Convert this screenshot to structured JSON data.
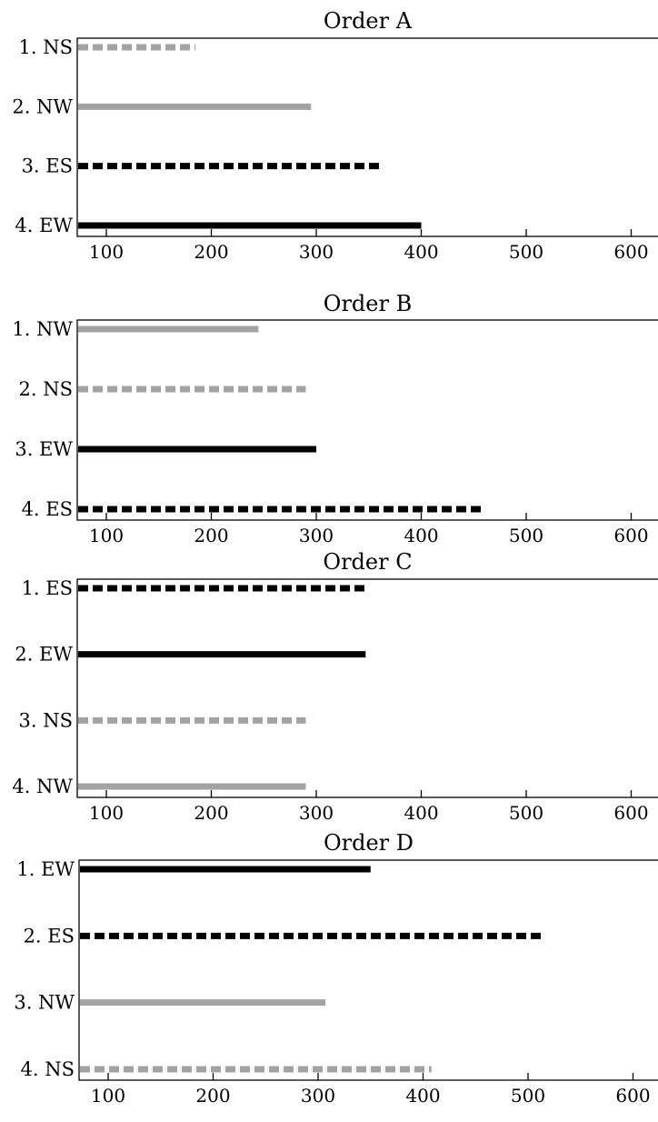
{
  "colors": {
    "black": "#000000",
    "gray": "#a3a3a3"
  },
  "chart_data": [
    {
      "type": "bar",
      "title": "Order A",
      "xlim": [
        70,
        630
      ],
      "xticks": [
        100,
        200,
        300,
        400,
        500,
        600
      ],
      "categories": [
        "1. NS",
        "2. NW",
        "3. ES",
        "4. EW"
      ],
      "values": [
        185,
        295,
        363,
        400
      ],
      "styles": [
        "gray-dashed",
        "gray-solid",
        "black-dashed",
        "black-solid"
      ]
    },
    {
      "type": "bar",
      "title": "Order B",
      "xlim": [
        70,
        630
      ],
      "xticks": [
        100,
        200,
        300,
        400,
        500,
        600
      ],
      "categories": [
        "1. NW",
        "2. NS",
        "3. EW",
        "4. ES"
      ],
      "values": [
        245,
        290,
        300,
        460
      ],
      "styles": [
        "gray-solid",
        "gray-dashed",
        "black-solid",
        "black-dashed"
      ]
    },
    {
      "type": "bar",
      "title": "Order C",
      "xlim": [
        70,
        630
      ],
      "xticks": [
        100,
        200,
        300,
        400,
        500,
        600
      ],
      "categories": [
        "1. ES",
        "2. EW",
        "3. NS",
        "4. NW"
      ],
      "values": [
        346,
        347,
        290,
        290
      ],
      "styles": [
        "black-dashed",
        "black-solid",
        "gray-dashed",
        "gray-solid"
      ]
    },
    {
      "type": "bar",
      "title": "Order D",
      "xlim": [
        70,
        630
      ],
      "xticks": [
        100,
        200,
        300,
        400,
        500,
        600
      ],
      "categories": [
        "1. EW",
        "2. ES",
        "3. NW",
        "4. NS"
      ],
      "values": [
        350,
        515,
        307,
        408
      ],
      "styles": [
        "black-solid",
        "black-dashed",
        "gray-solid",
        "gray-dashed"
      ]
    }
  ]
}
